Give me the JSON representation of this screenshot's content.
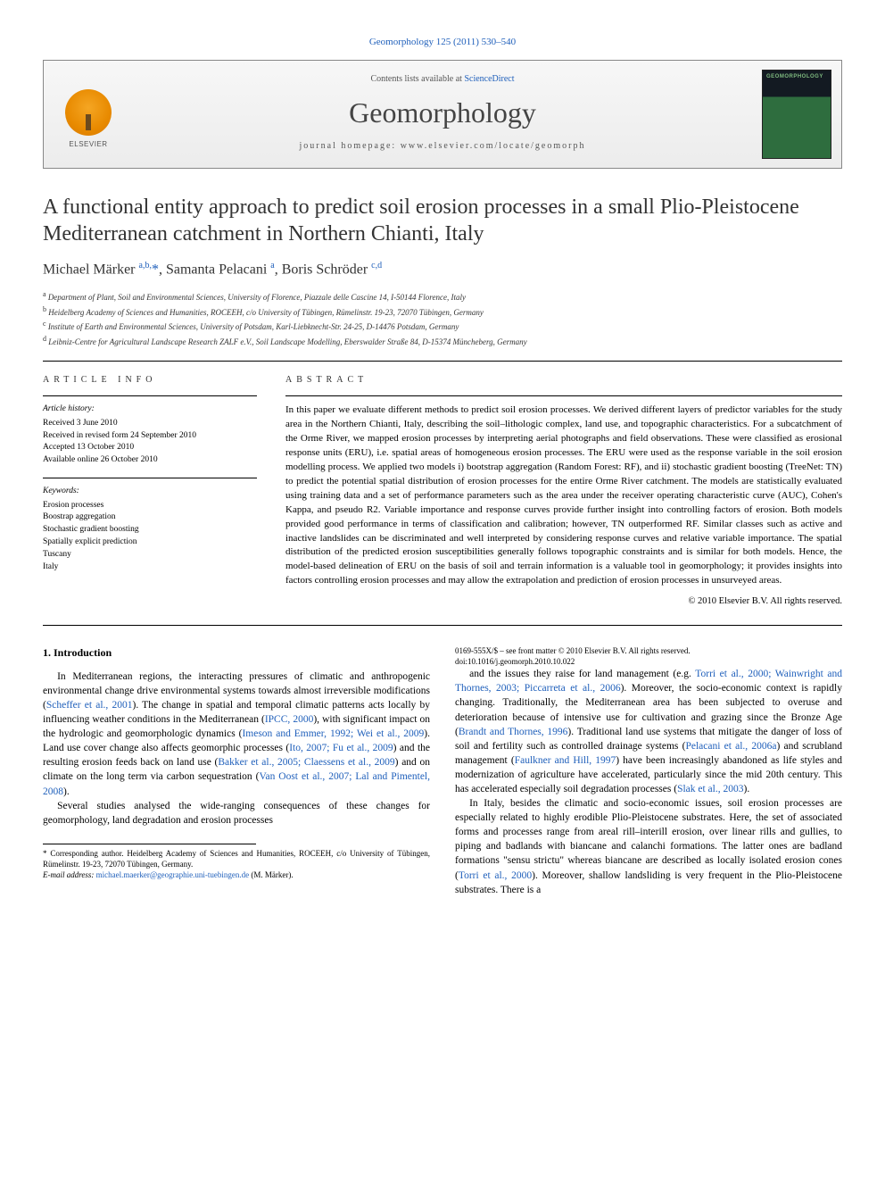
{
  "citation": "Geomorphology 125 (2011) 530–540",
  "masthead": {
    "contents_prefix": "Contents lists available at ",
    "contents_link": "ScienceDirect",
    "journal": "Geomorphology",
    "homepage_label": "journal homepage: www.elsevier.com/locate/geomorph",
    "publisher": "ELSEVIER",
    "cover_text": "GEOMORPHOLOGY"
  },
  "title": "A functional entity approach to predict soil erosion processes in a small Plio-Pleistocene Mediterranean catchment in Northern Chianti, Italy",
  "authors_html": "Michael Märker <sup>a,b,</sup><span class='star'>*</span>, Samanta Pelacani <sup>a</sup>, Boris Schröder <sup>c,d</sup>",
  "affiliations": {
    "a": "Department of Plant, Soil and Environmental Sciences, University of Florence, Piazzale delle Cascine 14, I-50144 Florence, Italy",
    "b": "Heidelberg Academy of Sciences and Humanities, ROCEEH, c/o University of Tübingen, Rümelinstr. 19-23, 72070 Tübingen, Germany",
    "c": "Institute of Earth and Environmental Sciences, University of Potsdam, Karl-Liebknecht-Str. 24-25, D-14476 Potsdam, Germany",
    "d": "Leibniz-Centre for Agricultural Landscape Research ZALF e.V., Soil Landscape Modelling, Eberswalder Straße 84, D-15374 Müncheberg, Germany"
  },
  "article_info": {
    "heading": "ARTICLE INFO",
    "history_label": "Article history:",
    "history": [
      "Received 3 June 2010",
      "Received in revised form 24 September 2010",
      "Accepted 13 October 2010",
      "Available online 26 October 2010"
    ],
    "keywords_label": "Keywords:",
    "keywords": [
      "Erosion processes",
      "Boostrap aggregation",
      "Stochastic gradient boosting",
      "Spatially explicit prediction",
      "Tuscany",
      "Italy"
    ]
  },
  "abstract": {
    "heading": "ABSTRACT",
    "text": "In this paper we evaluate different methods to predict soil erosion processes. We derived different layers of predictor variables for the study area in the Northern Chianti, Italy, describing the soil–lithologic complex, land use, and topographic characteristics. For a subcatchment of the Orme River, we mapped erosion processes by interpreting aerial photographs and field observations. These were classified as erosional response units (ERU), i.e. spatial areas of homogeneous erosion processes. The ERU were used as the response variable in the soil erosion modelling process. We applied two models i) bootstrap aggregation (Random Forest: RF), and ii) stochastic gradient boosting (TreeNet: TN) to predict the potential spatial distribution of erosion processes for the entire Orme River catchment. The models are statistically evaluated using training data and a set of performance parameters such as the area under the receiver operating characteristic curve (AUC), Cohen's Kappa, and pseudo R2. Variable importance and response curves provide further insight into controlling factors of erosion. Both models provided good performance in terms of classification and calibration; however, TN outperformed RF. Similar classes such as active and inactive landslides can be discriminated and well interpreted by considering response curves and relative variable importance. The spatial distribution of the predicted erosion susceptibilities generally follows topographic constraints and is similar for both models. Hence, the model-based delineation of ERU on the basis of soil and terrain information is a valuable tool in geomorphology; it provides insights into factors controlling erosion processes and may allow the extrapolation and prediction of erosion processes in unsurveyed areas.",
    "copyright": "© 2010 Elsevier B.V. All rights reserved."
  },
  "section1": {
    "heading": "1. Introduction",
    "p1_a": "In Mediterranean regions, the interacting pressures of climatic and anthropogenic environmental change drive environmental systems towards almost irreversible modifications (",
    "p1_c1": "Scheffer et al., 2001",
    "p1_b": "). The change in spatial and temporal climatic patterns acts locally by influencing weather conditions in the Mediterranean (",
    "p1_c2": "IPCC, 2000",
    "p1_c": "), with significant impact on the hydrologic and geomorphologic dynamics (",
    "p1_c3": "Imeson and Emmer, 1992; Wei et al., 2009",
    "p1_d": "). Land use cover change also affects geomorphic processes (",
    "p1_c4": "Ito, 2007; Fu et al., 2009",
    "p1_e": ") and the resulting erosion feeds back on land use (",
    "p1_c5": "Bakker et al., 2005; Claessens et al., 2009",
    "p1_f": ") and on climate on the long term via carbon sequestration (",
    "p1_c6": "Van Oost et al., 2007; Lal and Pimentel, 2008",
    "p1_g": ").",
    "p2_a": "Several studies analysed the wide-ranging consequences of these changes for geomorphology, land degradation and erosion processes",
    "p3_a": "and the issues they raise for land management (e.g. ",
    "p3_c1": "Torri et al., 2000; Wainwright and Thornes, 2003; Piccarreta et al., 2006",
    "p3_b": "). Moreover, the socio-economic context is rapidly changing. Traditionally, the Mediterranean area has been subjected to overuse and deterioration because of intensive use for cultivation and grazing since the Bronze Age (",
    "p3_c2": "Brandt and Thornes, 1996",
    "p3_c": "). Traditional land use systems that mitigate the danger of loss of soil and fertility such as controlled drainage systems (",
    "p3_c3": "Pelacani et al., 2006a",
    "p3_d": ") and scrubland management (",
    "p3_c4": "Faulkner and Hill, 1997",
    "p3_e": ") have been increasingly abandoned as life styles and modernization of agriculture have accelerated, particularly since the mid 20th century. This has accelerated especially soil degradation processes (",
    "p3_c5": "Slak et al., 2003",
    "p3_f": ").",
    "p4_a": "In Italy, besides the climatic and socio-economic issues, soil erosion processes are especially related to highly erodible Plio-Pleistocene substrates. Here, the set of associated forms and processes range from areal rill–interill erosion, over linear rills and gullies, to piping and badlands with biancane and calanchi formations. The latter ones are badland formations \"sensu strictu\" whereas biancane are described as locally isolated erosion cones (",
    "p4_c1": "Torri et al., 2000",
    "p4_b": "). Moreover, shallow landsliding is very frequent in the Plio-Pleistocene substrates. There is a"
  },
  "footnote": {
    "corr": "* Corresponding author. Heidelberg Academy of Sciences and Humanities, ROCEEH, c/o University of Tübingen, Rümelinstr. 19-23, 72070 Tübingen, Germany.",
    "email_label": "E-mail address: ",
    "email": "michael.maerker@geographie.uni-tuebingen.de",
    "email_tail": " (M. Märker)."
  },
  "doi": {
    "line1": "0169-555X/$ – see front matter © 2010 Elsevier B.V. All rights reserved.",
    "line2": "doi:10.1016/j.geomorph.2010.10.022"
  },
  "colors": {
    "link": "#2060bb",
    "text": "#000000",
    "heading": "#333333"
  }
}
